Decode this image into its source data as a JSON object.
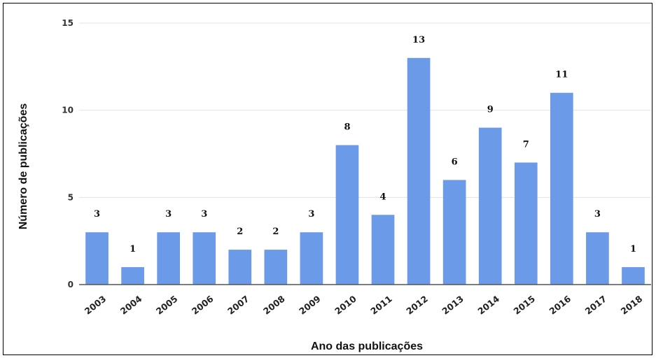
{
  "chart_data": {
    "type": "bar",
    "categories": [
      "2003",
      "2004",
      "2005",
      "2006",
      "2007",
      "2008",
      "2009",
      "2010",
      "2011",
      "2012",
      "2013",
      "2014",
      "2015",
      "2016",
      "2017",
      "2018"
    ],
    "values": [
      3,
      1,
      3,
      3,
      2,
      2,
      3,
      8,
      4,
      13,
      6,
      9,
      7,
      11,
      3,
      1
    ],
    "title": "",
    "xlabel": "Ano das publicações",
    "ylabel": "Número de publicações",
    "ylim": [
      0,
      15
    ],
    "yticks": [
      0,
      5,
      10,
      15
    ],
    "grid": true,
    "data_labels": true,
    "legend": "none",
    "colors": {
      "bar": "#6b9ae8",
      "grid": "#e3e3e3",
      "baseline": "#555555",
      "frame": "#000000"
    }
  }
}
